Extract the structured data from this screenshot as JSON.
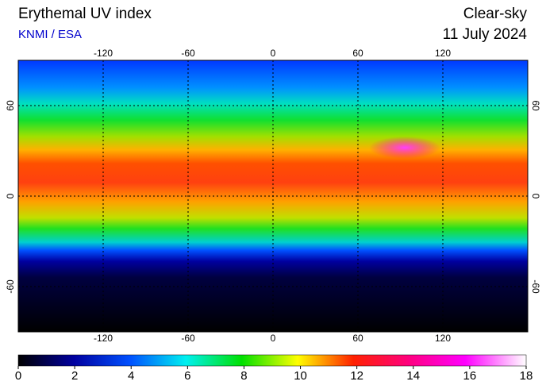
{
  "chart_data": {
    "type": "map",
    "title": "Erythemal UV index",
    "subtitle": "KNMI / ESA",
    "condition": "Clear-sky",
    "date": "11 July 2024",
    "xlim": [
      -180,
      180
    ],
    "xticks": [
      -120,
      -60,
      0,
      60,
      120
    ],
    "ylim": [
      -90,
      90
    ],
    "yticks": [
      -60,
      0,
      60
    ],
    "grid": true,
    "colorbar": {
      "lim": [
        0,
        18
      ],
      "ticks": [
        0,
        2,
        4,
        6,
        8,
        10,
        12,
        14,
        16,
        18
      ]
    }
  }
}
